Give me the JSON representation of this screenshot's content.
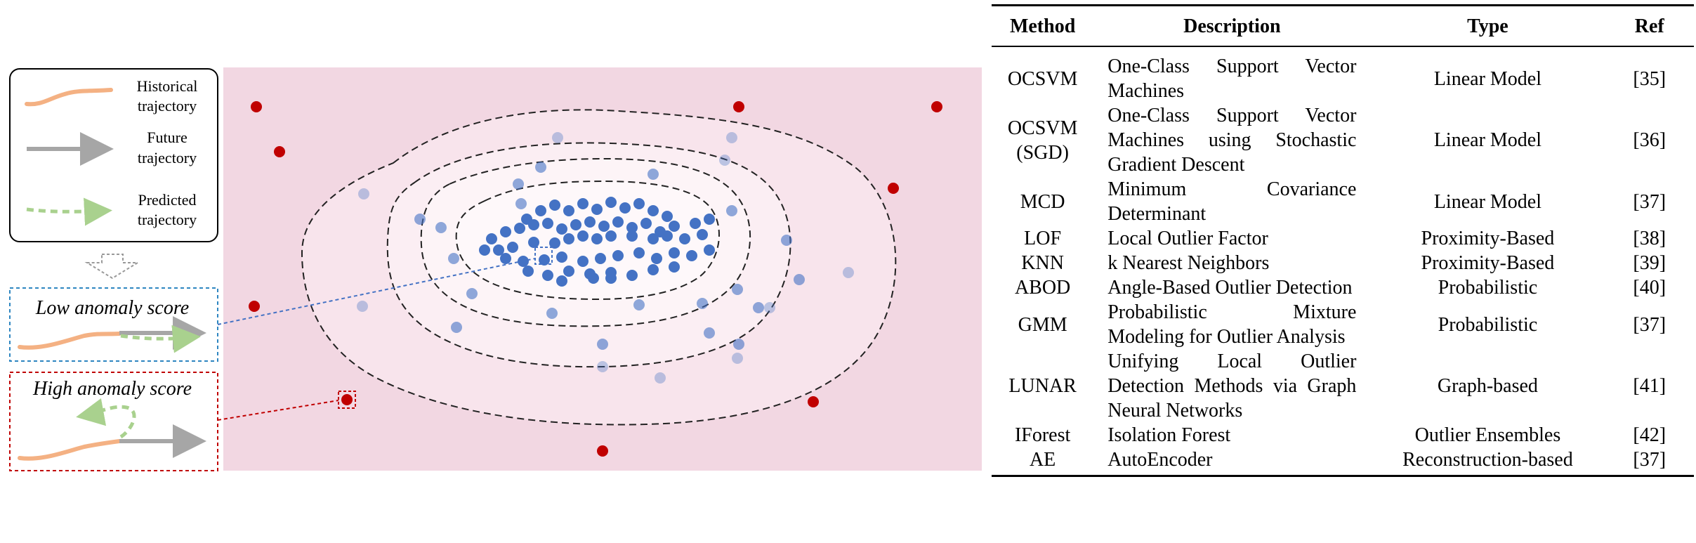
{
  "legend": {
    "historical": "Historical trajectory",
    "future": "Future trajectory",
    "predicted": "Predicted trajectory"
  },
  "scores": {
    "low": "Low anomaly score",
    "high": "High anomaly score"
  },
  "colors": {
    "plot_background": "#f2d7e2",
    "inner_region": "#fdf4f7",
    "normal_point": "#4472c4",
    "outlier_point": "#c00000",
    "historical": "#f4b183",
    "future": "#a6a6a6",
    "predicted": "#a9d18e"
  },
  "table": {
    "headers": [
      "Method",
      "Description",
      "Type",
      "Ref"
    ],
    "rows": [
      {
        "method": "OCSVM",
        "description": "One-Class Support Vector Machines",
        "type": "Linear Model",
        "ref": "[35]"
      },
      {
        "method": "OCSVM (SGD)",
        "description": "One-Class Support Vector Machines using Stochastic Gradient Descent",
        "type": "Linear Model",
        "ref": "[36]"
      },
      {
        "method": "MCD",
        "description": "Minimum Covariance Determinant",
        "type": "Linear Model",
        "ref": "[37]"
      },
      {
        "method": "LOF",
        "description": "Local Outlier Factor",
        "type": "Proximity-Based",
        "ref": "[38]"
      },
      {
        "method": "KNN",
        "description": "k Nearest Neighbors",
        "type": "Proximity-Based",
        "ref": "[39]"
      },
      {
        "method": "ABOD",
        "description": "Angle-Based Outlier Detection",
        "type": "Probabilistic",
        "ref": "[40]"
      },
      {
        "method": "GMM",
        "description": "Probabilistic Mixture Modeling for Outlier Analysis",
        "type": "Probabilistic",
        "ref": "[37]"
      },
      {
        "method": "LUNAR",
        "description": "Unifying Local Outlier Detection Methods via Graph Neural Networks",
        "type": "Graph-based",
        "ref": "[41]"
      },
      {
        "method": "IForest",
        "description": "Isolation Forest",
        "type": "Outlier Ensembles",
        "ref": "[42]"
      },
      {
        "method": "AE",
        "description": "AutoEncoder",
        "type": "Reconstruction-based",
        "ref": "[37]"
      }
    ]
  }
}
